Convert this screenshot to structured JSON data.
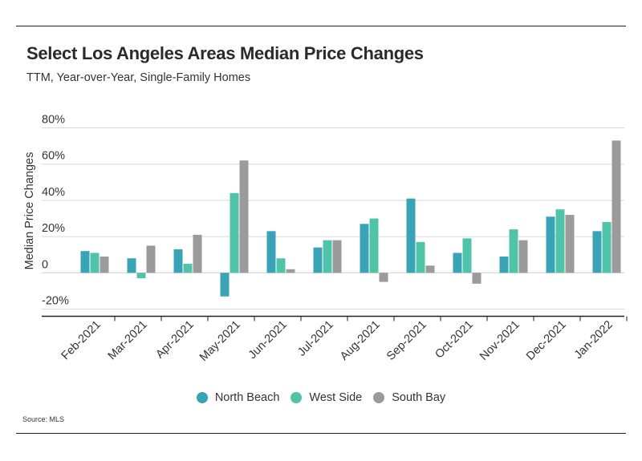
{
  "title": "Select Los Angeles Areas Median Price Changes",
  "subtitle": "TTM, Year-over-Year, Single-Family Homes",
  "source": "Source:  MLS",
  "chart_data": {
    "type": "bar",
    "title": "Select Los Angeles Areas Median Price Changes",
    "subtitle": "TTM, Year-over-Year, Single-Family Homes",
    "xlabel": "",
    "ylabel": "Median Price Changes",
    "ylim": [
      -20,
      80
    ],
    "yticks": [
      -20,
      0,
      20,
      40,
      60,
      80
    ],
    "ytick_labels": [
      "-20%",
      "0",
      "20%",
      "40%",
      "60%",
      "80%"
    ],
    "grid": "horizontal",
    "legend": "bottom",
    "categories": [
      "Feb-2021",
      "Mar-2021",
      "Apr-2021",
      "May-2021",
      "Jun-2021",
      "Jul-2021",
      "Aug-2021",
      "Sep-2021",
      "Oct-2021",
      "Nov-2021",
      "Dec-2021",
      "Jan-2022"
    ],
    "series": [
      {
        "name": "North Beach",
        "color": "#3aa3b5",
        "values": [
          12,
          8,
          13,
          -13,
          23,
          14,
          27,
          41,
          11,
          9,
          31,
          23
        ]
      },
      {
        "name": "West Side",
        "color": "#4fc4a8",
        "values": [
          11,
          -3,
          5,
          44,
          8,
          18,
          30,
          17,
          19,
          24,
          35,
          28
        ]
      },
      {
        "name": "South Bay",
        "color": "#9b9b9b",
        "values": [
          9,
          15,
          21,
          62,
          2,
          18,
          -5,
          4,
          -6,
          18,
          32,
          73
        ]
      }
    ]
  }
}
